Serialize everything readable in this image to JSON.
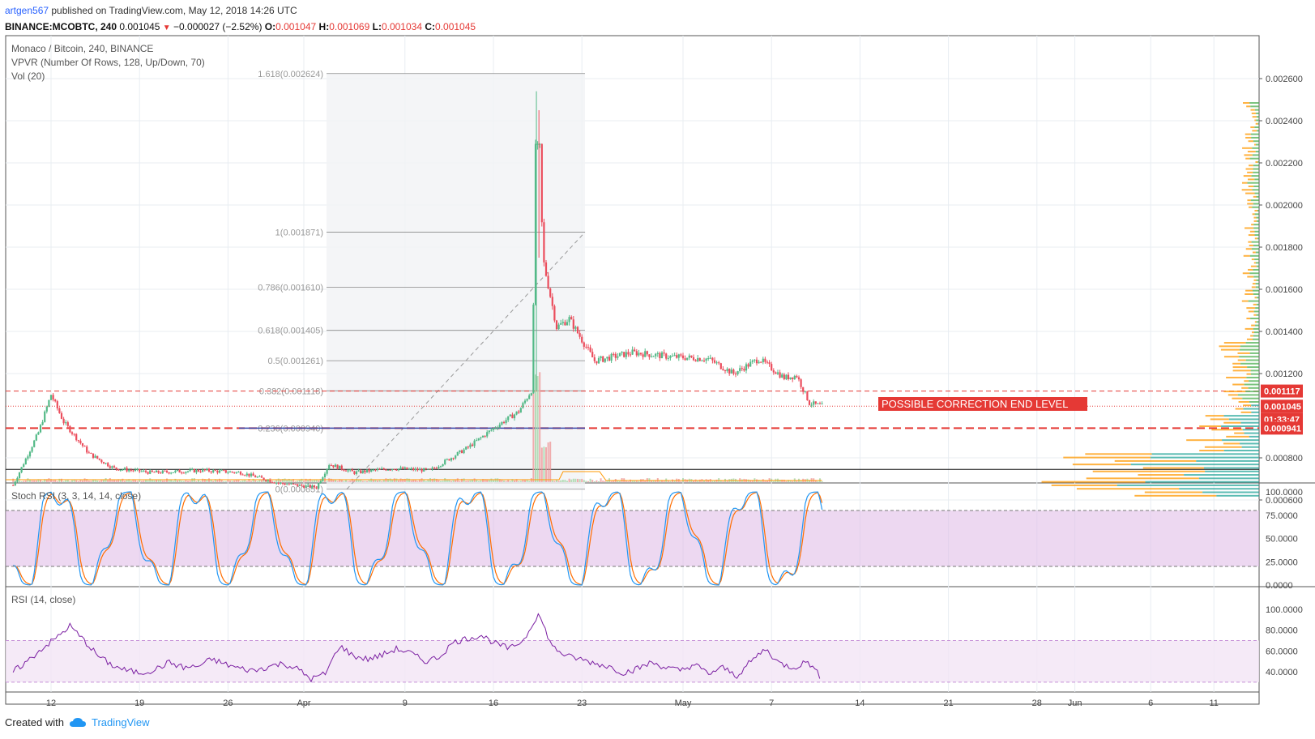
{
  "header": {
    "author": "artgen567",
    "published": " published on TradingView.com, May 12, 2018 14:26 UTC",
    "symbol_line": "BINANCE:MCOBTC, 240",
    "last": "0.001045",
    "change": "−0.000027 (−2.52%)",
    "o_label": "O:",
    "o_value": "0.001047",
    "h_label": "H:",
    "h_value": "0.001069",
    "l_label": "L:",
    "l_value": "0.001034",
    "c_label": "C:",
    "c_value": "0.001045"
  },
  "legend": {
    "title": "Monaco / Bitcoin, 240, BINANCE",
    "vpvr": "VPVR (Number Of Rows, 128, Up/Down, 70)",
    "vol": "Vol (20)"
  },
  "annotation": "POSSIBLE CORRECTION END LEVEL",
  "price_badges": {
    "upper": "0.001117",
    "current": "0.001045",
    "countdown": "01:33:47",
    "lower": "0.000941"
  },
  "footer": {
    "created": "Created with",
    "brand": "TradingView"
  },
  "colors": {
    "up": "#53b987",
    "down": "#eb4d5c",
    "fib": "#888888",
    "stoch_k": "#2196f3",
    "stoch_d": "#ff6d00",
    "rsi": "#7b1fa2",
    "annotation_bg": "#e53935"
  },
  "chart_data": [
    {
      "type": "candlestick",
      "title": "Monaco / Bitcoin, 240, BINANCE",
      "x_ticks": [
        "12",
        "19",
        "26",
        "Apr",
        "9",
        "16",
        "23",
        "May",
        "7",
        "14",
        "21",
        "28",
        "Jun",
        "6",
        "11"
      ],
      "y_ticks": [
        "0.002600",
        "0.002400",
        "0.002200",
        "0.002000",
        "0.001800",
        "0.001600",
        "0.001400",
        "0.001200",
        "0.000800",
        "0.000600"
      ],
      "ylim": [
        0.00054,
        0.00266
      ],
      "price_path": [
        [
          "Mar 9",
          0.00067
        ],
        [
          "Mar 11",
          0.00092
        ],
        [
          "Mar 12",
          0.0011
        ],
        [
          "Mar 13",
          0.00097
        ],
        [
          "Mar 15",
          0.00082
        ],
        [
          "Mar 17",
          0.00075
        ],
        [
          "Mar 20",
          0.00073
        ],
        [
          "Mar 24",
          0.00074
        ],
        [
          "Mar 27",
          0.00073
        ],
        [
          "Mar 30",
          0.00068
        ],
        [
          "Apr 2",
          0.00066
        ],
        [
          "Apr 3",
          0.00077
        ],
        [
          "Apr 5",
          0.00073
        ],
        [
          "Apr 8",
          0.00075
        ],
        [
          "Apr 11",
          0.00074
        ],
        [
          "Apr 14",
          0.00085
        ],
        [
          "Apr 16",
          0.00094
        ],
        [
          "Apr 18",
          0.00102
        ],
        [
          "Apr 19",
          0.00112
        ],
        [
          "Apr 19.5",
          0.00229
        ],
        [
          "Apr 20",
          0.00172
        ],
        [
          "Apr 21",
          0.00142
        ],
        [
          "Apr 22",
          0.00146
        ],
        [
          "Apr 24",
          0.00126
        ],
        [
          "Apr 27",
          0.0013
        ],
        [
          "Apr 30",
          0.00128
        ],
        [
          "May 3",
          0.00127
        ],
        [
          "May 5",
          0.0012
        ],
        [
          "May 7",
          0.00127
        ],
        [
          "May 9",
          0.00118
        ],
        [
          "May 10",
          0.00119
        ],
        [
          "May 11",
          0.00106
        ],
        [
          "May 12",
          0.001045
        ]
      ],
      "fibonacci": [
        {
          "label": "1.618(0.002624)",
          "value": 0.002624
        },
        {
          "label": "1(0.001871)",
          "value": 0.001871
        },
        {
          "label": "0.786(0.001610)",
          "value": 0.00161
        },
        {
          "label": "0.618(0.001405)",
          "value": 0.001405
        },
        {
          "label": "0.5(0.001261)",
          "value": 0.001261
        },
        {
          "label": "0.382(0.001118)",
          "value": 0.001118
        },
        {
          "label": "0.236(0.000940)",
          "value": 0.00094
        },
        {
          "label": "0(0.000651)",
          "value": 0.000651
        }
      ],
      "horizontal_lines": [
        0.001117,
        0.001045,
        0.000941,
        0.000745
      ]
    },
    {
      "type": "line",
      "title": "Stoch RSI (3, 3, 14, 14, close)",
      "y_ticks": [
        "100.0000",
        "75.0000",
        "50.0000",
        "25.0000",
        "0.0000"
      ],
      "ylim": [
        0,
        100
      ],
      "band": [
        20,
        80
      ]
    },
    {
      "type": "line",
      "title": "RSI (14, close)",
      "y_ticks": [
        "100.0000",
        "80.0000",
        "60.0000",
        "40.0000"
      ],
      "ylim": [
        25,
        100
      ],
      "band": [
        30,
        70
      ],
      "series": [
        {
          "values": [
            40,
            50,
            62,
            72,
            84,
            70,
            55,
            46,
            41,
            39,
            42,
            49,
            44,
            45,
            52,
            47,
            43,
            41,
            45,
            48,
            43,
            33,
            38,
            65,
            55,
            52,
            56,
            62,
            58,
            50,
            54,
            68,
            72,
            75,
            67,
            62,
            71,
            96,
            64,
            55,
            52,
            48,
            45,
            39,
            43,
            49,
            44,
            41,
            47,
            38,
            44,
            36,
            50,
            62,
            48,
            44,
            50,
            33
          ]
        }
      ]
    }
  ]
}
